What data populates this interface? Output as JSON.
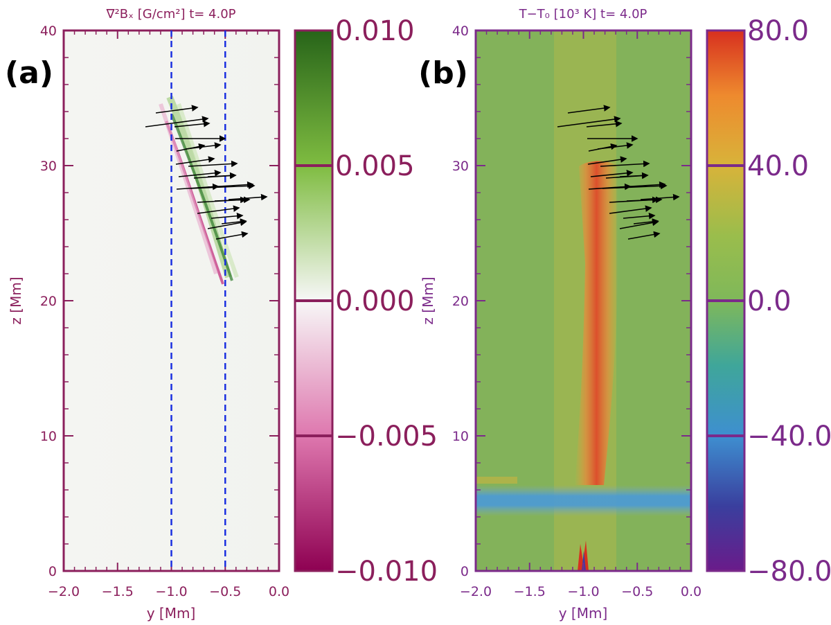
{
  "chart_data": [
    {
      "type": "heatmap",
      "panel_label": "(a)",
      "title": "∇²Bₓ [G/cm²] t= 4.0P",
      "xlabel": "y [Mm]",
      "ylabel": "z [Mm]",
      "xlim": [
        -2.0,
        0.0
      ],
      "ylim": [
        0,
        40
      ],
      "x_ticks": [
        "−2.0",
        "−1.5",
        "−1.0",
        "−0.5",
        "0.0"
      ],
      "y_ticks": [
        "0",
        "10",
        "20",
        "30",
        "40"
      ],
      "colorbar": {
        "range": [
          -0.01,
          0.01
        ],
        "tick_labels": [
          "0.010",
          "0.005",
          "0.000",
          "−0.005",
          "−0.010"
        ],
        "colormap": "pink-white-green"
      },
      "dashed_lines_y": [
        -1.0,
        -0.5
      ],
      "colors": {
        "axes": "#8b1f5c",
        "dashed": "#1a2fe0"
      }
    },
    {
      "type": "heatmap",
      "panel_label": "(b)",
      "title": "T−T₀ [10³ K] t= 4.0P",
      "xlabel": "y [Mm]",
      "ylabel": "z [Mm]",
      "xlim": [
        -2.0,
        0.0
      ],
      "ylim": [
        0,
        40
      ],
      "x_ticks": [
        "−2.0",
        "−1.5",
        "−1.0",
        "−0.5",
        "0.0"
      ],
      "y_ticks": [
        "0",
        "10",
        "20",
        "30",
        "40"
      ],
      "colorbar": {
        "range": [
          -80.0,
          80.0
        ],
        "tick_labels": [
          "80.0",
          "40.0",
          "0.0",
          "−40.0",
          "−80.0"
        ],
        "colormap": "rainbow"
      },
      "colors": {
        "axes": "#7b2a8a"
      }
    }
  ]
}
